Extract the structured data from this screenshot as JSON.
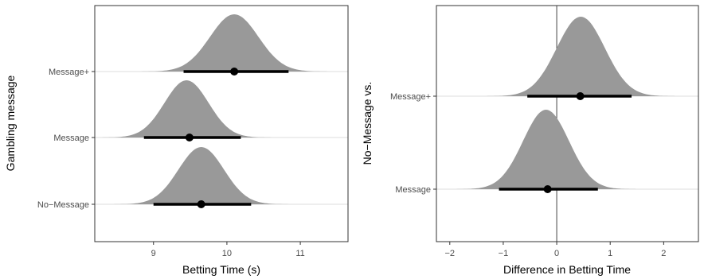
{
  "chart_data": [
    {
      "type": "density-interval",
      "xlabel": "Betting Time (s)",
      "ylabel": "Gambling message",
      "xlim": [
        8.2,
        11.65
      ],
      "xticks": [
        9,
        10,
        11
      ],
      "categories": [
        "No−Message",
        "Message",
        "Message+"
      ],
      "series": [
        {
          "category": "No−Message",
          "mode": 9.65,
          "point": 9.65,
          "interval": [
            9.0,
            10.33
          ],
          "sd": 0.31
        },
        {
          "category": "Message",
          "mode": 9.45,
          "point": 9.49,
          "interval": [
            8.87,
            10.19
          ],
          "sd": 0.3
        },
        {
          "category": "Message+",
          "mode": 10.1,
          "point": 10.1,
          "interval": [
            9.41,
            10.84
          ],
          "sd": 0.33
        }
      ],
      "grid": false,
      "fill_color": "#999999",
      "interval_color": "#000000"
    },
    {
      "type": "density-interval",
      "xlabel": "Difference in Betting Time",
      "ylabel": "No−Message vs.",
      "xlim": [
        -2.25,
        2.65
      ],
      "xticks": [
        -2,
        -1,
        0,
        1,
        2
      ],
      "reference_line": 0,
      "categories": [
        "Message",
        "Message+"
      ],
      "series": [
        {
          "category": "Message",
          "mode": -0.2,
          "point": -0.17,
          "interval": [
            -1.08,
            0.77
          ],
          "sd": 0.43
        },
        {
          "category": "Message+",
          "mode": 0.45,
          "point": 0.44,
          "interval": [
            -0.55,
            1.4
          ],
          "sd": 0.45
        }
      ],
      "grid": false,
      "fill_color": "#999999",
      "interval_color": "#000000"
    }
  ]
}
